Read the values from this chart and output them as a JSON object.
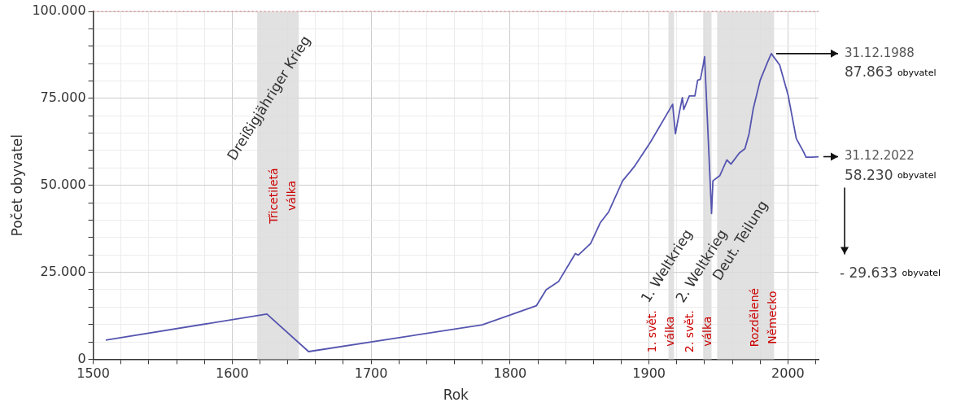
{
  "chart_data": {
    "type": "line",
    "xlabel": "Rok",
    "ylabel": "Počet obyvatel",
    "xlim": [
      1500,
      2022
    ],
    "ylim": [
      0,
      100000
    ],
    "xticks": [
      1500,
      {
        "value": 1520,
        "label": null
      },
      {
        "value": 1540,
        "label": null
      },
      {
        "value": 1560,
        "label": null
      },
      {
        "value": 1580,
        "label": null
      },
      1600,
      {
        "value": 1620,
        "label": null
      },
      {
        "value": 1640,
        "label": null
      },
      {
        "value": 1660,
        "label": null
      },
      {
        "value": 1680,
        "label": null
      },
      1700,
      {
        "value": 1720,
        "label": null
      },
      {
        "value": 1740,
        "label": null
      },
      {
        "value": 1760,
        "label": null
      },
      {
        "value": 1780,
        "label": null
      },
      1800,
      {
        "value": 1820,
        "label": null
      },
      {
        "value": 1840,
        "label": null
      },
      {
        "value": 1860,
        "label": null
      },
      {
        "value": 1880,
        "label": null
      },
      1900,
      {
        "value": 1920,
        "label": null
      },
      {
        "value": 1940,
        "label": null
      },
      {
        "value": 1960,
        "label": null
      },
      {
        "value": 1980,
        "label": null
      },
      2000,
      {
        "value": 2020,
        "label": null
      }
    ],
    "yticks": [
      0,
      {
        "value": 5000,
        "label": null
      },
      {
        "value": 10000,
        "label": null
      },
      {
        "value": 15000,
        "label": null
      },
      {
        "value": 20000,
        "label": null
      },
      {
        "value": 25000,
        "label": "25.000"
      },
      {
        "value": 30000,
        "label": null
      },
      {
        "value": 35000,
        "label": null
      },
      {
        "value": 40000,
        "label": null
      },
      {
        "value": 45000,
        "label": null
      },
      {
        "value": 50000,
        "label": "50.000"
      },
      {
        "value": 55000,
        "label": null
      },
      {
        "value": 60000,
        "label": null
      },
      {
        "value": 65000,
        "label": null
      },
      {
        "value": 70000,
        "label": null
      },
      {
        "value": 75000,
        "label": "75.000"
      },
      {
        "value": 80000,
        "label": null
      },
      {
        "value": 85000,
        "label": null
      },
      {
        "value": 90000,
        "label": null
      },
      {
        "value": 95000,
        "label": null
      },
      {
        "value": 100000,
        "label": "100.000"
      }
    ],
    "grid": true,
    "x": [
      1509,
      1625,
      1655,
      1780,
      1819,
      1826,
      1835,
      1847,
      1849,
      1858,
      1865,
      1871,
      1881,
      1886,
      1890,
      1901,
      1917,
      1919,
      1922,
      1924,
      1925,
      1929,
      1933,
      1935,
      1937,
      1939,
      1940,
      1945,
      1946,
      1951,
      1956,
      1959,
      1965,
      1969,
      1972,
      1975,
      1980,
      1985,
      1988,
      1994,
      2000,
      2006,
      2011,
      2013,
      2017,
      2022
    ],
    "series": [
      {
        "color": "#5555b0",
        "values": [
          5500,
          13000,
          2200,
          9900,
          15400,
          20000,
          22400,
          30400,
          29900,
          33300,
          39300,
          42400,
          51300,
          53700,
          55700,
          62400,
          73300,
          64800,
          71300,
          75200,
          71800,
          75700,
          75700,
          80200,
          80500,
          84600,
          87000,
          41900,
          51300,
          52800,
          57300,
          56100,
          59300,
          60500,
          64800,
          72000,
          80200,
          85100,
          87863,
          84600,
          76100,
          63400,
          59800,
          58100,
          58100,
          58230
        ]
      }
    ],
    "bands": [
      {
        "axis": "x",
        "from": 1618,
        "to": 1648,
        "label": "Dreißigjähriger Krieg",
        "color": "#dcdcdc"
      },
      {
        "axis": "x",
        "from": 1914,
        "to": 1918,
        "label": "1. Weltkrieg",
        "color": "#dcdcdc"
      },
      {
        "axis": "x",
        "from": 1939,
        "to": 1945,
        "label": "2. Weltkrieg",
        "color": "#dcdcdc"
      },
      {
        "axis": "x",
        "from": 1949,
        "to": 1990,
        "label": "Deut. Teilung",
        "color": "#dcdcdc"
      }
    ],
    "ref_lines": [
      {
        "axis": "y",
        "value": 100000,
        "color": "#e07070",
        "line_style": "dotted"
      }
    ],
    "annotations": [
      "Třicetiletá\nválka",
      "1. svět.\nválka",
      "2. svět.\nválka",
      "Rozdělené\nNěmecko",
      {
        "text": "31.12.1988\n87.863 obyvatel",
        "x": 1988,
        "y": 87863
      },
      {
        "text": "31.12.2022\n58.230 obyvatel",
        "x": 2022,
        "y": 58230
      },
      "- 29.633 obyvatel"
    ]
  }
}
